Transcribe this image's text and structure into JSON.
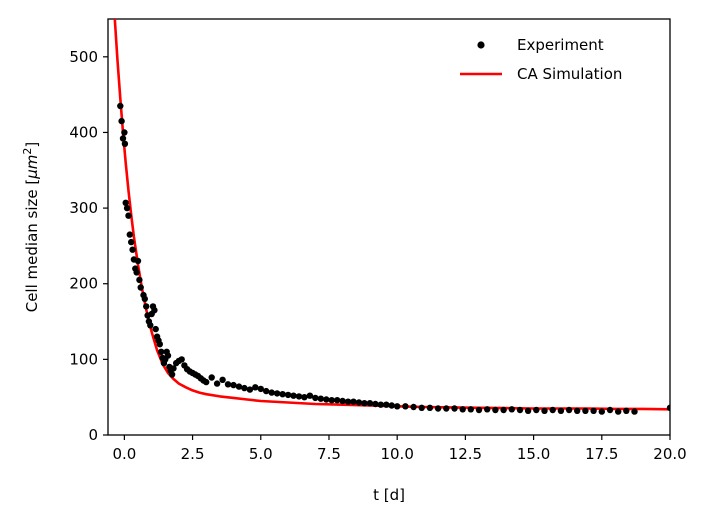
{
  "chart_data": {
    "type": "scatter",
    "title": "",
    "xlabel": "t [d]",
    "ylabel_prefix": "Cell median size [",
    "ylabel_unit": "μm",
    "ylabel_exp": "2",
    "ylabel_suffix": "]",
    "xlim": [
      -0.6,
      20.0
    ],
    "ylim": [
      0,
      550
    ],
    "xticks": [
      0.0,
      2.5,
      5.0,
      7.5,
      10.0,
      12.5,
      15.0,
      17.5,
      20.0
    ],
    "xtick_labels": [
      "0.0",
      "2.5",
      "5.0",
      "7.5",
      "10.0",
      "12.5",
      "15.0",
      "17.5",
      "20.0"
    ],
    "yticks": [
      0,
      100,
      200,
      300,
      400,
      500
    ],
    "ytick_labels": [
      "0",
      "100",
      "200",
      "300",
      "400",
      "500"
    ],
    "grid": false,
    "legend_position": "top-right",
    "series": [
      {
        "name": "Experiment",
        "kind": "scatter",
        "color": "#000000",
        "x": [
          -0.15,
          -0.1,
          -0.05,
          0.0,
          0.02,
          0.05,
          0.1,
          0.15,
          0.2,
          0.25,
          0.3,
          0.35,
          0.4,
          0.45,
          0.5,
          0.55,
          0.6,
          0.7,
          0.75,
          0.8,
          0.85,
          0.9,
          0.95,
          1.0,
          1.05,
          1.1,
          1.15,
          1.2,
          1.25,
          1.3,
          1.35,
          1.4,
          1.45,
          1.5,
          1.55,
          1.6,
          1.65,
          1.7,
          1.75,
          1.8,
          1.9,
          2.0,
          2.1,
          2.2,
          2.3,
          2.4,
          2.5,
          2.6,
          2.7,
          2.8,
          2.9,
          3.0,
          3.2,
          3.4,
          3.6,
          3.8,
          4.0,
          4.2,
          4.4,
          4.6,
          4.8,
          5.0,
          5.2,
          5.4,
          5.6,
          5.8,
          6.0,
          6.2,
          6.4,
          6.6,
          6.8,
          7.0,
          7.2,
          7.4,
          7.6,
          7.8,
          8.0,
          8.2,
          8.4,
          8.6,
          8.8,
          9.0,
          9.2,
          9.4,
          9.6,
          9.8,
          10.0,
          10.3,
          10.6,
          10.9,
          11.2,
          11.5,
          11.8,
          12.1,
          12.4,
          12.7,
          13.0,
          13.3,
          13.6,
          13.9,
          14.2,
          14.5,
          14.8,
          15.1,
          15.4,
          15.7,
          16.0,
          16.3,
          16.6,
          16.9,
          17.2,
          17.5,
          17.8,
          18.1,
          18.4,
          18.7,
          20.0
        ],
        "y": [
          435,
          415,
          392,
          400,
          385,
          307,
          300,
          290,
          265,
          255,
          245,
          232,
          220,
          215,
          230,
          205,
          195,
          185,
          180,
          170,
          158,
          150,
          145,
          160,
          170,
          165,
          140,
          130,
          125,
          120,
          110,
          102,
          95,
          100,
          110,
          105,
          90,
          85,
          80,
          88,
          95,
          98,
          100,
          92,
          87,
          84,
          82,
          80,
          78,
          75,
          72,
          70,
          76,
          68,
          73,
          67,
          66,
          64,
          62,
          60,
          63,
          61,
          58,
          56,
          55,
          54,
          53,
          52,
          51,
          50,
          52,
          49,
          48,
          47,
          46,
          46,
          45,
          44,
          44,
          43,
          42,
          42,
          41,
          40,
          40,
          39,
          38,
          38,
          37,
          36,
          36,
          35,
          35,
          35,
          34,
          34,
          33,
          34,
          33,
          33,
          34,
          33,
          32,
          33,
          32,
          33,
          32,
          33,
          32,
          32,
          32,
          31,
          33,
          31,
          32,
          31,
          36
        ]
      },
      {
        "name": "CA Simulation",
        "kind": "line",
        "color": "#ff0000",
        "x": [
          -0.35,
          -0.25,
          -0.15,
          -0.05,
          0.05,
          0.15,
          0.25,
          0.35,
          0.5,
          0.65,
          0.8,
          1.0,
          1.2,
          1.4,
          1.6,
          1.8,
          2.0,
          2.25,
          2.5,
          2.75,
          3.0,
          3.5,
          4.0,
          4.5,
          5.0,
          6.0,
          7.0,
          8.0,
          9.0,
          10.0,
          11.0,
          12.0,
          13.0,
          14.0,
          15.0,
          16.0,
          17.0,
          18.0,
          19.0,
          20.0
        ],
        "y": [
          550,
          495,
          445,
          400,
          360,
          323,
          291,
          262,
          225,
          193,
          166,
          136,
          112,
          94,
          82,
          74,
          68,
          63,
          59,
          56,
          54,
          51,
          49,
          47,
          45,
          43,
          41,
          40,
          39,
          38,
          37,
          36.5,
          36,
          35.5,
          35,
          35,
          35,
          34.5,
          34.5,
          34
        ]
      }
    ]
  }
}
